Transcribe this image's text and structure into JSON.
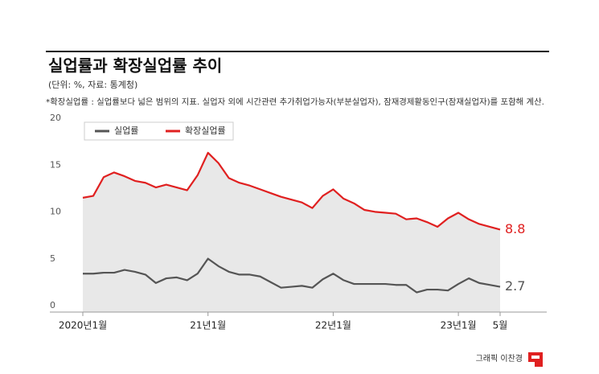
{
  "chart_data": {
    "type": "line",
    "title": "실업률과 확장실업률 추이",
    "subtitle": "(단위: %, 자료: 통계청)",
    "note": "*확장실업률 : 실업률보다 넓은 범위의 지표. 실업자 외에 시간관련 추가취업가능자(부분실업자), 잠재경제활동인구(잠재실업자)를 포함해 계산.",
    "credit": "그래픽 이찬경",
    "categories": [
      "2020년1월",
      null,
      null,
      null,
      null,
      null,
      null,
      null,
      null,
      null,
      null,
      null,
      "21년1월",
      null,
      null,
      null,
      null,
      null,
      null,
      null,
      null,
      null,
      null,
      null,
      "22년1월",
      null,
      null,
      null,
      null,
      null,
      null,
      null,
      null,
      null,
      null,
      null,
      "23년1월",
      null,
      null,
      null,
      "5월"
    ],
    "series": [
      {
        "name": "실업률",
        "color": "#555555",
        "values": [
          4.1,
          4.1,
          4.2,
          4.2,
          4.5,
          4.3,
          4.0,
          3.1,
          3.6,
          3.7,
          3.4,
          4.1,
          5.7,
          4.9,
          4.3,
          4.0,
          4.0,
          3.8,
          3.2,
          2.6,
          2.7,
          2.8,
          2.6,
          3.5,
          4.1,
          3.4,
          3.0,
          3.0,
          3.0,
          3.0,
          2.9,
          2.9,
          2.1,
          2.4,
          2.4,
          2.3,
          3.0,
          3.6,
          3.1,
          2.9,
          2.7
        ]
      },
      {
        "name": "확장실업률",
        "color": "#e02020",
        "values": [
          12.2,
          12.4,
          14.4,
          14.9,
          14.5,
          14.0,
          13.8,
          13.3,
          13.6,
          13.3,
          13.0,
          14.6,
          17.0,
          15.9,
          14.3,
          13.8,
          13.5,
          13.1,
          12.7,
          12.3,
          12.0,
          11.7,
          11.1,
          12.4,
          13.1,
          12.1,
          11.6,
          10.9,
          10.7,
          10.6,
          10.5,
          9.9,
          10.0,
          9.6,
          9.1,
          10.0,
          10.6,
          9.9,
          9.4,
          9.1,
          8.8
        ]
      }
    ],
    "ylim": [
      0,
      20
    ],
    "yticks": [
      0,
      5,
      10,
      15,
      20
    ]
  }
}
